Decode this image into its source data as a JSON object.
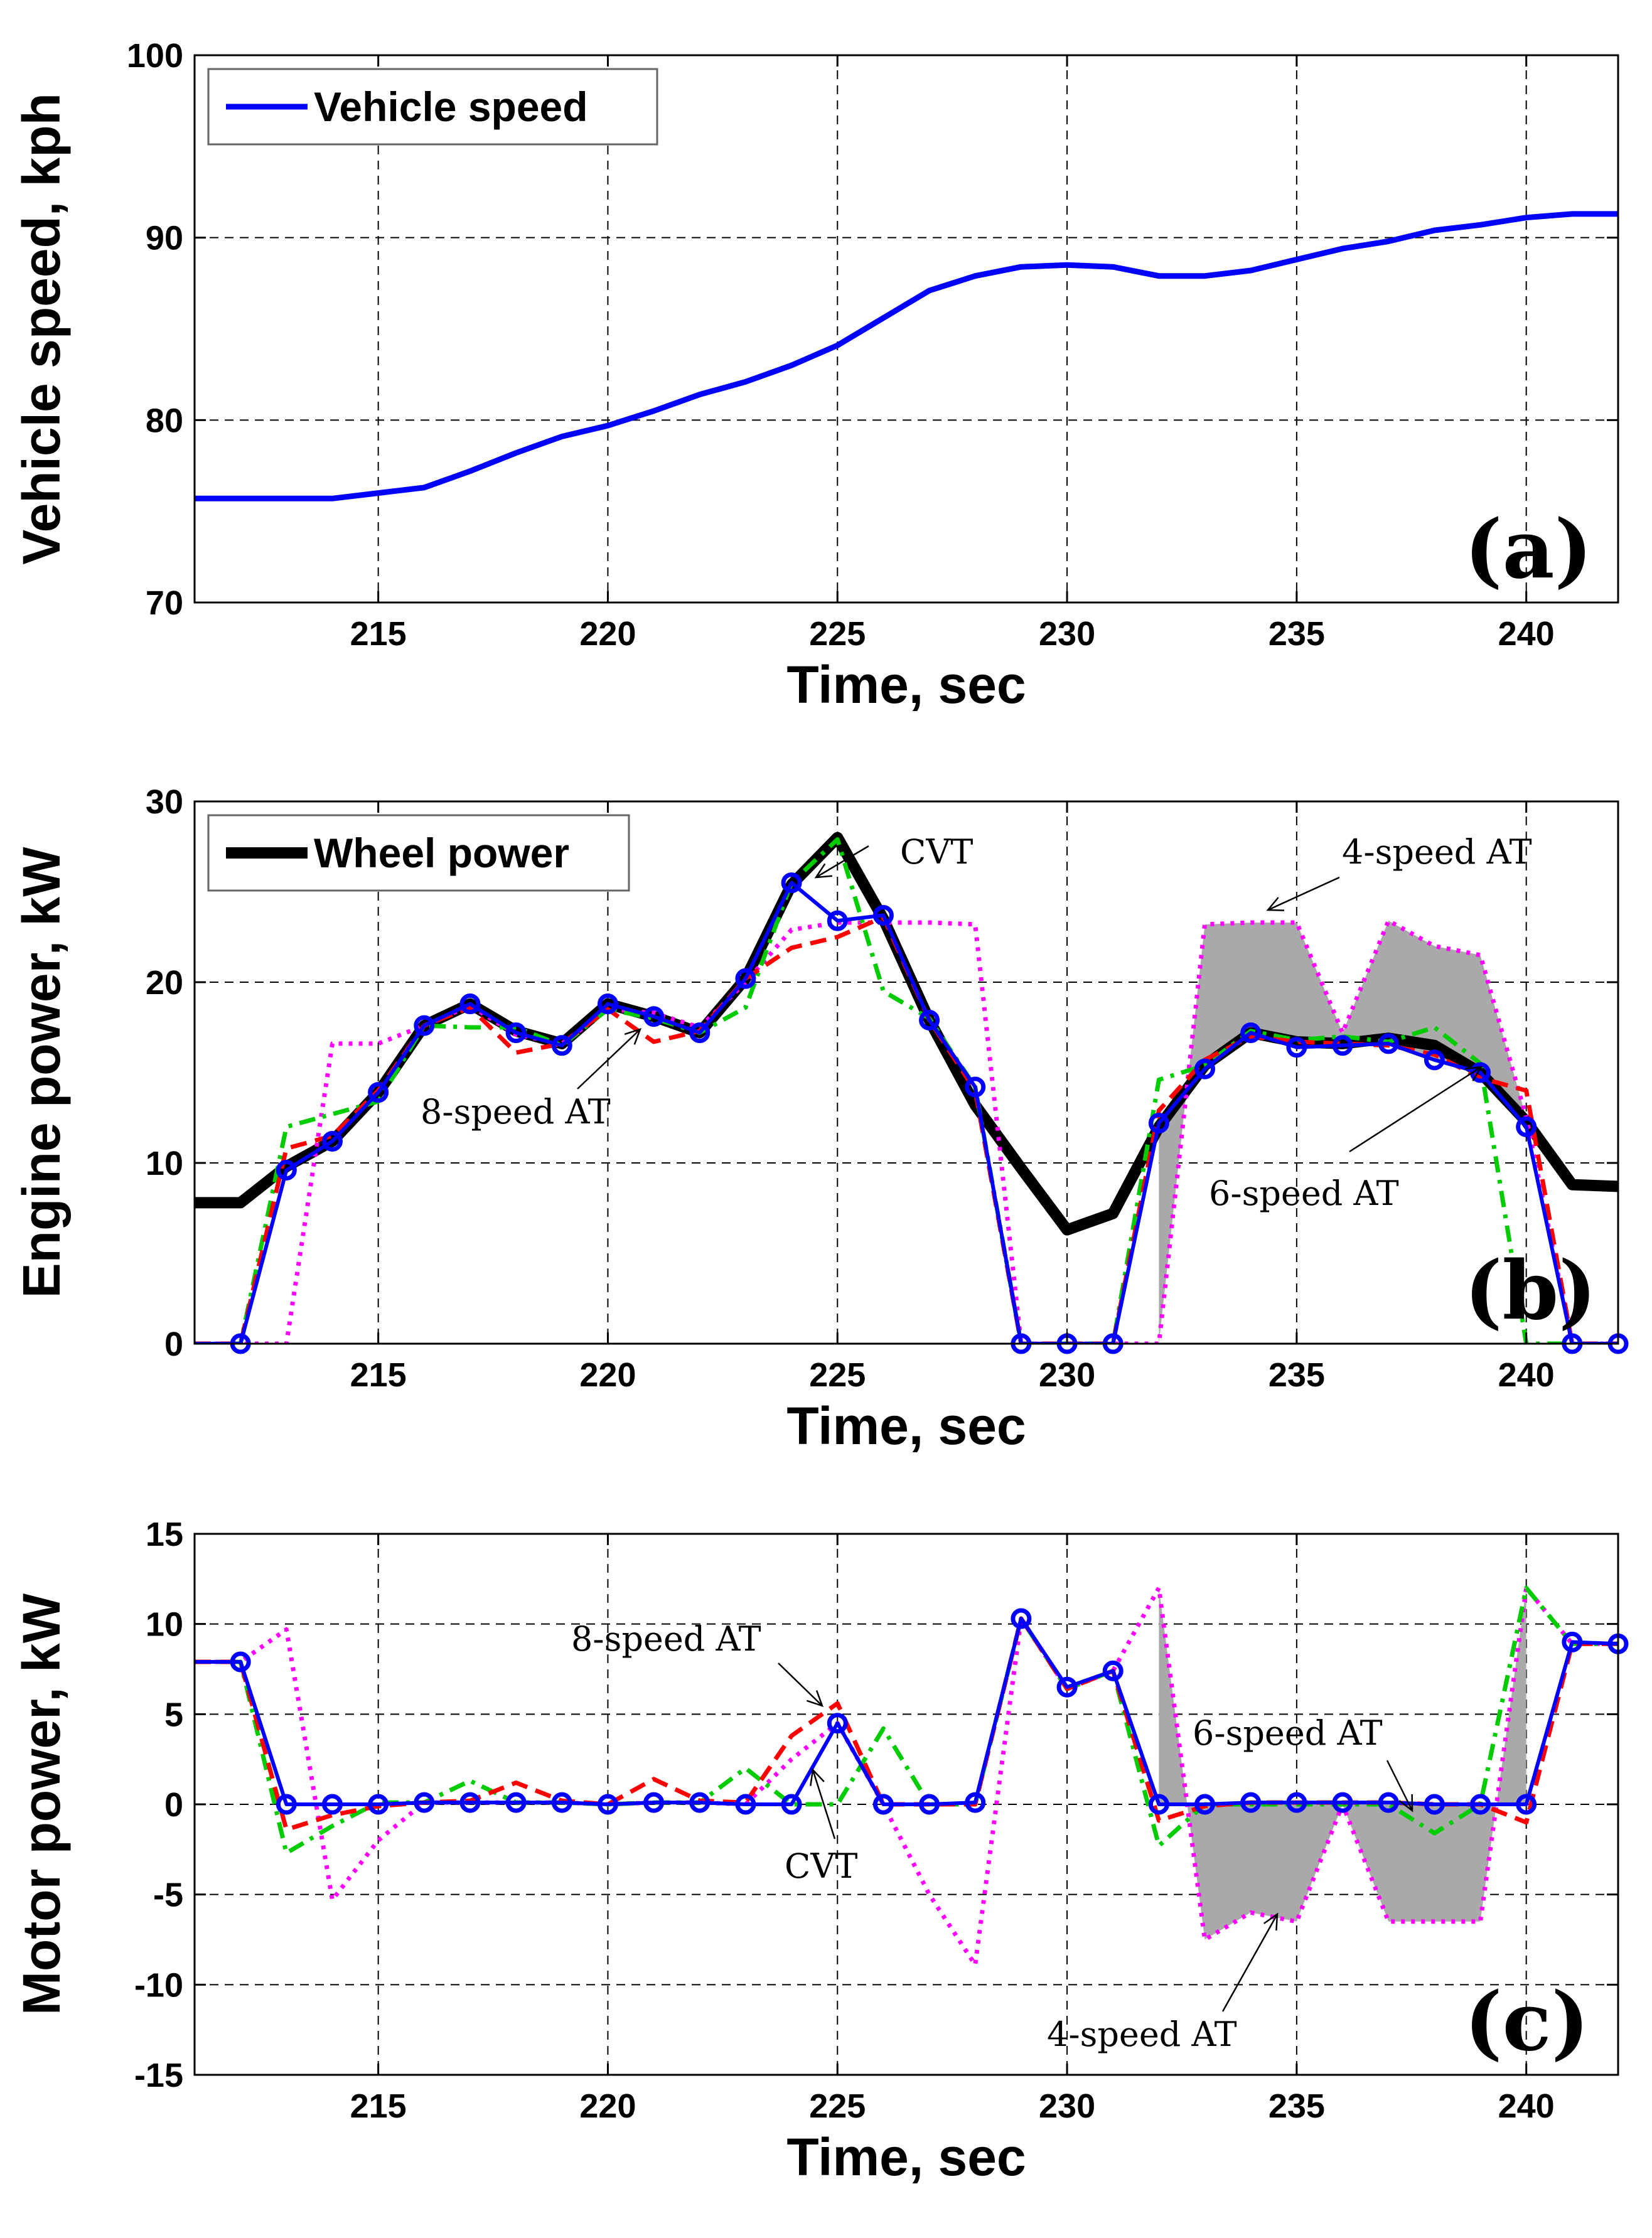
{
  "chart_data": [
    {
      "type": "line",
      "panel_label": "(a)",
      "xlabel": "Time, sec",
      "ylabel": "Vehicle speed, kph",
      "xlim": [
        211,
        242
      ],
      "ylim": [
        70,
        100
      ],
      "xticks": [
        215,
        220,
        225,
        230,
        235,
        240
      ],
      "yticks": [
        70,
        80,
        90,
        100
      ],
      "grid": true,
      "legend": {
        "placement": "top-left",
        "entries": [
          "Vehicle speed"
        ]
      },
      "series": [
        {
          "name": "Vehicle speed",
          "color": "#0000ff",
          "x": [
            211,
            212,
            213,
            214,
            215,
            216,
            217,
            218,
            219,
            220,
            221,
            222,
            223,
            224,
            225,
            226,
            227,
            228,
            229,
            230,
            231,
            232,
            233,
            234,
            235,
            236,
            237,
            238,
            239,
            240,
            241,
            242
          ],
          "y": [
            75.7,
            75.7,
            75.7,
            75.7,
            76.0,
            76.3,
            77.2,
            78.2,
            79.1,
            79.7,
            80.5,
            81.4,
            82.1,
            83.0,
            84.1,
            85.6,
            87.1,
            87.9,
            88.4,
            88.5,
            88.4,
            87.9,
            87.9,
            88.2,
            88.8,
            89.4,
            89.8,
            90.4,
            90.7,
            91.1,
            91.3,
            91.3
          ]
        }
      ]
    },
    {
      "type": "line",
      "panel_label": "(b)",
      "xlabel": "Time, sec",
      "ylabel": "Engine power, kW",
      "xlim": [
        211,
        242
      ],
      "ylim": [
        0,
        30
      ],
      "xticks": [
        215,
        220,
        225,
        230,
        235,
        240
      ],
      "yticks": [
        0,
        10,
        20,
        30
      ],
      "grid": true,
      "legend": {
        "placement": "top-left",
        "entries": [
          "Wheel power"
        ]
      },
      "annotations": [
        "CVT",
        "4-speed AT",
        "8-speed AT",
        "6-speed AT"
      ],
      "series": [
        {
          "name": "Wheel power",
          "color": "#000000",
          "x": [
            211,
            212,
            213,
            214,
            215,
            216,
            217,
            218,
            219,
            220,
            221,
            222,
            223,
            224,
            225,
            226,
            227,
            228,
            229,
            230,
            231,
            232,
            233,
            234,
            235,
            236,
            237,
            238,
            239,
            240,
            241,
            242
          ],
          "y": [
            7.8,
            7.8,
            9.8,
            11.2,
            13.9,
            17.6,
            18.8,
            17.3,
            16.6,
            18.8,
            18.1,
            17.2,
            20.2,
            25.4,
            28.0,
            23.5,
            17.9,
            13.2,
            9.7,
            6.3,
            7.2,
            12.0,
            15.4,
            17.2,
            16.7,
            16.6,
            16.9,
            16.5,
            15.0,
            12.3,
            8.8,
            8.7
          ]
        },
        {
          "name": "CVT",
          "color": "#0000ff",
          "x": [
            211,
            212,
            213,
            214,
            215,
            216,
            217,
            218,
            219,
            220,
            221,
            222,
            223,
            224,
            225,
            226,
            227,
            228,
            229,
            230,
            231,
            232,
            233,
            234,
            235,
            236,
            237,
            238,
            239,
            240,
            241,
            242
          ],
          "y": [
            0,
            0,
            9.6,
            11.2,
            13.9,
            17.6,
            18.8,
            17.2,
            16.5,
            18.8,
            18.1,
            17.2,
            20.2,
            25.5,
            23.4,
            23.7,
            17.9,
            14.2,
            0,
            0,
            0,
            12.2,
            15.2,
            17.2,
            16.4,
            16.5,
            16.6,
            15.7,
            15.0,
            12.0,
            0,
            0
          ]
        },
        {
          "name": "8-speed AT",
          "color": "#ff0000",
          "x": [
            211,
            212,
            213,
            214,
            215,
            216,
            217,
            218,
            219,
            220,
            221,
            222,
            223,
            224,
            225,
            226,
            227,
            228,
            229,
            230,
            231,
            232,
            233,
            234,
            235,
            236,
            237,
            238,
            239,
            240,
            241,
            242
          ],
          "y": [
            0,
            0,
            10.8,
            11.5,
            14.0,
            17.6,
            18.6,
            16.1,
            16.6,
            18.5,
            16.7,
            17.3,
            20.2,
            21.9,
            22.5,
            23.6,
            17.9,
            14.0,
            0,
            0,
            0,
            12.9,
            15.7,
            17.0,
            16.7,
            16.6,
            16.5,
            16.0,
            14.7,
            14.0,
            0,
            0
          ]
        },
        {
          "name": "6-speed AT",
          "color": "#00cc00",
          "x": [
            211,
            212,
            213,
            214,
            215,
            216,
            217,
            218,
            219,
            220,
            221,
            222,
            223,
            224,
            225,
            226,
            227,
            228,
            229,
            230,
            231,
            232,
            233,
            234,
            235,
            236,
            237,
            238,
            239,
            240,
            241,
            242
          ],
          "y": [
            0,
            0,
            12.0,
            12.7,
            13.4,
            17.6,
            17.5,
            17.5,
            16.5,
            18.5,
            18.0,
            17.2,
            18.6,
            25.5,
            27.9,
            19.5,
            18.0,
            14.2,
            0,
            0,
            0,
            14.6,
            15.4,
            17.3,
            16.8,
            17.0,
            16.7,
            17.5,
            15.5,
            0,
            0,
            0
          ]
        },
        {
          "name": "4-speed AT",
          "color": "#ff00ff",
          "x": [
            211,
            212,
            213,
            214,
            215,
            216,
            217,
            218,
            219,
            220,
            221,
            222,
            223,
            224,
            225,
            226,
            227,
            228,
            229,
            230,
            231,
            232,
            233,
            234,
            235,
            236,
            237,
            238,
            239,
            240,
            241,
            242
          ],
          "y": [
            0,
            0,
            0,
            16.6,
            16.6,
            17.6,
            18.7,
            17.1,
            16.6,
            18.5,
            18.3,
            17.5,
            20.0,
            22.9,
            23.3,
            23.3,
            23.3,
            23.2,
            0,
            0,
            0,
            0,
            23.2,
            23.3,
            23.3,
            17.2,
            23.4,
            22.0,
            21.5,
            12.5,
            0,
            0
          ]
        }
      ]
    },
    {
      "type": "line",
      "panel_label": "(c)",
      "xlabel": "Time, sec",
      "ylabel": "Motor power, kW",
      "xlim": [
        211,
        242
      ],
      "ylim": [
        -15,
        15
      ],
      "xticks": [
        215,
        220,
        225,
        230,
        235,
        240
      ],
      "yticks": [
        -15,
        -10,
        -5,
        0,
        5,
        10,
        15
      ],
      "grid": true,
      "annotations": [
        "8-speed AT",
        "CVT",
        "6-speed AT",
        "4-speed AT"
      ],
      "series": [
        {
          "name": "CVT",
          "color": "#0000ff",
          "x": [
            211,
            212,
            213,
            214,
            215,
            216,
            217,
            218,
            219,
            220,
            221,
            222,
            223,
            224,
            225,
            226,
            227,
            228,
            229,
            230,
            231,
            232,
            233,
            234,
            235,
            236,
            237,
            238,
            239,
            240,
            241,
            242
          ],
          "y": [
            7.9,
            7.9,
            0,
            0,
            0,
            0.1,
            0.1,
            0.1,
            0.1,
            0,
            0.1,
            0.1,
            0,
            0,
            4.5,
            0,
            0,
            0.1,
            10.3,
            6.5,
            7.4,
            0,
            0,
            0.1,
            0.1,
            0.1,
            0.1,
            0,
            0,
            0,
            9.0,
            8.9
          ]
        },
        {
          "name": "8-speed AT",
          "color": "#ff0000",
          "x": [
            211,
            212,
            213,
            214,
            215,
            216,
            217,
            218,
            219,
            220,
            221,
            222,
            223,
            224,
            225,
            226,
            227,
            228,
            229,
            230,
            231,
            232,
            233,
            234,
            235,
            236,
            237,
            238,
            239,
            240,
            241,
            242
          ],
          "y": [
            7.9,
            7.9,
            -1.4,
            -0.6,
            -0.1,
            0.1,
            0.2,
            1.2,
            0.2,
            0,
            1.4,
            0.2,
            0.1,
            3.8,
            5.6,
            0,
            0,
            0,
            10.3,
            6.4,
            7.4,
            -0.9,
            -0.1,
            0.1,
            0.1,
            0.1,
            0.1,
            0,
            0,
            -1.0,
            8.9,
            8.9
          ]
        },
        {
          "name": "6-speed AT",
          "color": "#00cc00",
          "x": [
            211,
            212,
            213,
            214,
            215,
            216,
            217,
            218,
            219,
            220,
            221,
            222,
            223,
            224,
            225,
            226,
            227,
            228,
            229,
            230,
            231,
            232,
            233,
            234,
            235,
            236,
            237,
            238,
            239,
            240,
            241,
            242
          ],
          "y": [
            7.9,
            7.9,
            -2.7,
            -1.2,
            0.1,
            0.1,
            1.3,
            0.1,
            0.1,
            0,
            0.1,
            0.1,
            2.0,
            0,
            0,
            4.2,
            0,
            0,
            10.3,
            6.4,
            7.4,
            -2.3,
            0,
            0,
            0,
            0,
            0,
            -1.6,
            0,
            12.0,
            8.9,
            8.9
          ]
        },
        {
          "name": "4-speed AT",
          "color": "#ff00ff",
          "x": [
            211,
            212,
            213,
            214,
            215,
            216,
            217,
            218,
            219,
            220,
            221,
            222,
            223,
            224,
            225,
            226,
            227,
            228,
            229,
            230,
            231,
            232,
            233,
            234,
            235,
            236,
            237,
            238,
            239,
            240,
            241,
            242
          ],
          "y": [
            7.9,
            7.9,
            9.7,
            -5.3,
            -2.0,
            0.1,
            0.1,
            0.1,
            0.1,
            0,
            0.1,
            0.1,
            0,
            2.5,
            4.5,
            0,
            -5.0,
            -8.9,
            10.3,
            6.4,
            7.4,
            12.0,
            -7.5,
            -6.0,
            -6.5,
            0,
            -6.5,
            -6.5,
            -6.5,
            12.0,
            8.9,
            8.9
          ]
        }
      ]
    }
  ]
}
